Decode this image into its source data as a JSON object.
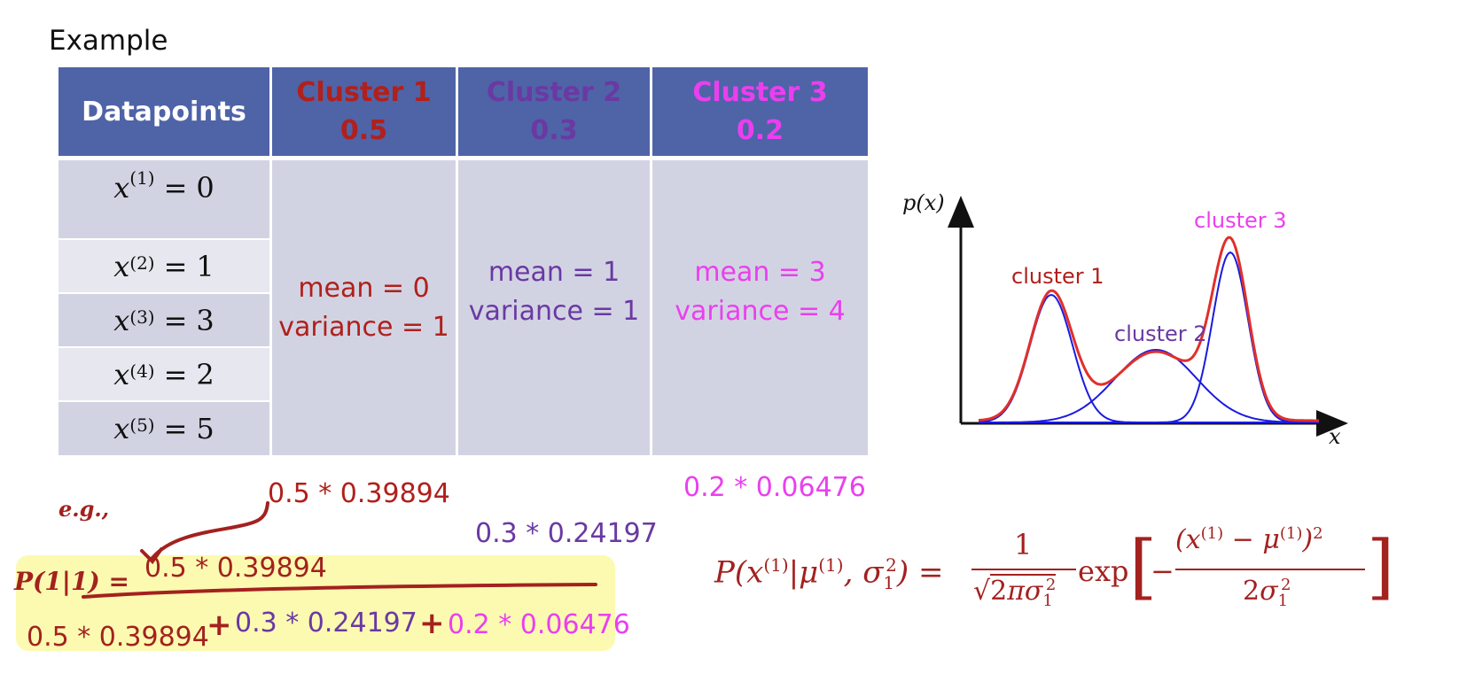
{
  "title": "Example",
  "table": {
    "header": {
      "datapoints": "Datapoints",
      "cluster1": {
        "name": "Cluster 1",
        "weight": "0.5"
      },
      "cluster2": {
        "name": "Cluster 2",
        "weight": "0.3"
      },
      "cluster3": {
        "name": "Cluster 3",
        "weight": "0.2"
      }
    },
    "rows": [
      {
        "sup": "(1)",
        "value": "0"
      },
      {
        "sup": "(2)",
        "value": "1"
      },
      {
        "sup": "(3)",
        "value": "3"
      },
      {
        "sup": "(4)",
        "value": "2"
      },
      {
        "sup": "(5)",
        "value": "5"
      }
    ],
    "cluster1": {
      "mean": "mean = 0",
      "variance": "variance = 1"
    },
    "cluster2": {
      "mean": "mean = 1",
      "variance": "variance = 1"
    },
    "cluster3": {
      "mean": "mean = 3",
      "variance": "variance = 4"
    }
  },
  "plot": {
    "ylabel": "p(x)",
    "xlabel": "x",
    "labels": {
      "cluster1": "cluster 1",
      "cluster2": "cluster 2",
      "cluster3": "cluster 3"
    }
  },
  "annotations": {
    "eg": "e.g.,",
    "c1_term": "0.5 * 0.39894",
    "c2_term": "0.3 * 0.24197",
    "c3_term": "0.2 * 0.06476",
    "p_label": "P(1|1) =",
    "numerator": "0.5 * 0.39894",
    "denom1": "0.5 * 0.39894",
    "plus": "+",
    "denom2": "0.3 * 0.24197",
    "denom3": "0.2 * 0.06476"
  },
  "formula": {
    "lhs": "P",
    "one": "1",
    "two": "2",
    "exp": "exp"
  },
  "colors": {
    "header_bg": "#4f63a7",
    "cell_bg": "#d2d3e2",
    "cluster1": "#b0201c",
    "cluster2": "#6a39a3",
    "cluster3": "#ea3fef",
    "highlight": "#fbfab0"
  }
}
